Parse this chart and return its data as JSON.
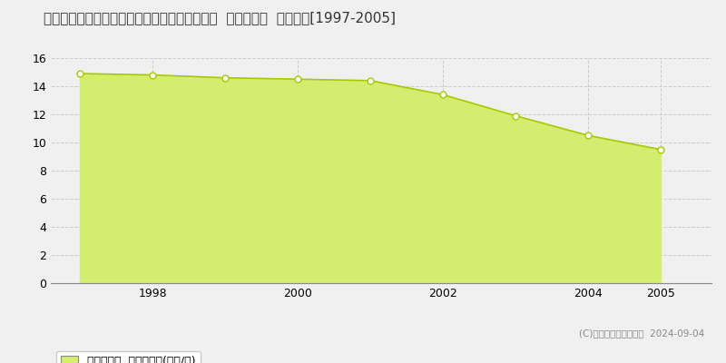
{
  "title": "香川県仲多度郡琴平町苗田字厚見２９０番３外  基準地価格  地価推移[1997-2005]",
  "years": [
    1997,
    1998,
    1999,
    2000,
    2001,
    2002,
    2003,
    2004,
    2005
  ],
  "values": [
    14.9,
    14.8,
    14.6,
    14.5,
    14.4,
    13.4,
    11.9,
    10.5,
    9.5
  ],
  "fill_color": "#d4ed6e",
  "line_color": "#a8c800",
  "marker_color": "#ffffff",
  "marker_edge_color": "#a8c800",
  "background_color": "#f0f0f0",
  "plot_bg_color": "#f0f0f0",
  "grid_color": "#cccccc",
  "ylim": [
    0,
    16
  ],
  "yticks": [
    0,
    2,
    4,
    6,
    8,
    10,
    12,
    14,
    16
  ],
  "xlim_left": 1996.6,
  "xlim_right": 2005.7,
  "xtick_positions": [
    1998,
    2000,
    2002,
    2004,
    2005
  ],
  "legend_label": "基準地価格  平均坪単価(万円/坪)",
  "copyright_text": "(C)土地価格ドットコム  2024-09-04",
  "title_fontsize": 11,
  "axis_fontsize": 9,
  "legend_fontsize": 9
}
